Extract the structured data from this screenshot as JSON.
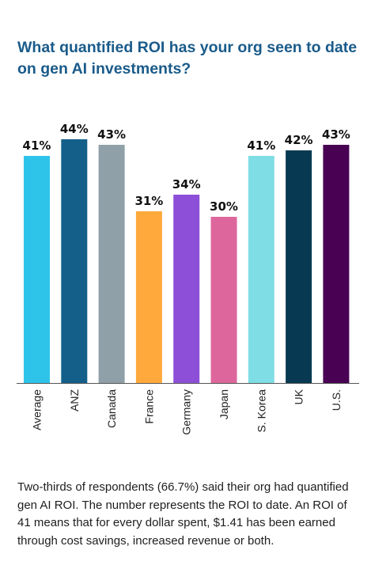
{
  "title": "What quantified ROI has your org seen to date on gen AI investments?",
  "caption": "Two-thirds of respondents (66.7%) said their org had quantified gen AI ROI. The number represents the ROI to date. An ROI of 41 means that for every dollar spent, $1.41 has been earned through cost savings, increased revenue or both.",
  "chart_data": {
    "type": "bar",
    "title": "What quantified ROI has your org seen to date on gen AI investments?",
    "xlabel": "",
    "ylabel": "",
    "unit": "%",
    "ylim": [
      0,
      44
    ],
    "grid": false,
    "legend": "none",
    "categories": [
      "Average",
      "ANZ",
      "Canada",
      "France",
      "Germany",
      "Japan",
      "S. Korea",
      "UK",
      "U.S."
    ],
    "values": [
      41,
      44,
      43,
      31,
      34,
      30,
      41,
      42,
      43
    ],
    "value_labels": [
      "41%",
      "44%",
      "43%",
      "31%",
      "34%",
      "30%",
      "41%",
      "42%",
      "43%"
    ],
    "colors": [
      "#2ec4ea",
      "#135f8a",
      "#8fa0a8",
      "#ffa93c",
      "#8e4fd8",
      "#dd679c",
      "#7fdde5",
      "#073a52",
      "#480153"
    ]
  }
}
